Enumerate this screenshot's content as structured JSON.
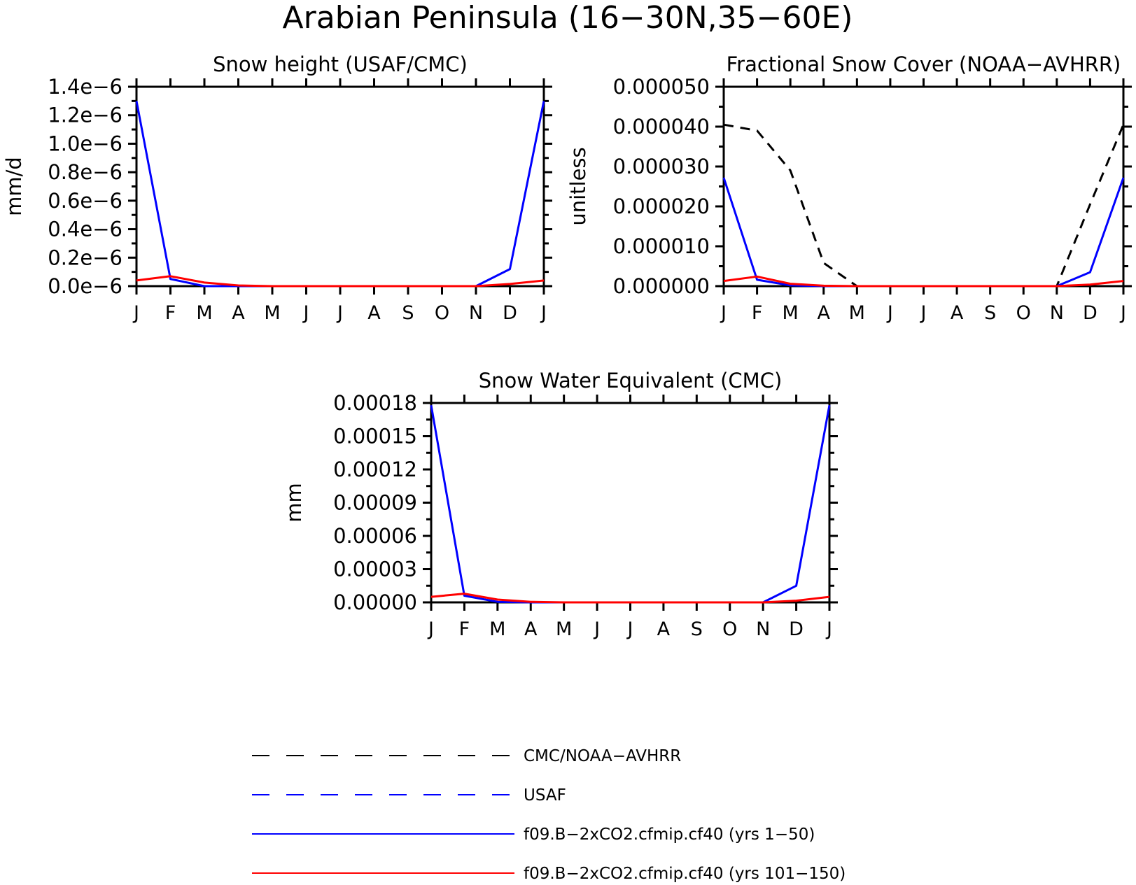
{
  "title": "Arabian Peninsula (16−30N,35−60E)",
  "colors": {
    "obs": "#000000",
    "usaf": "#0000ff",
    "run1": "#0000ff",
    "run2": "#ff0000"
  },
  "chart_data": [
    {
      "type": "line",
      "title": "Snow height (USAF/CMC)",
      "ylabel": "mm/d",
      "xlabel": "",
      "categories": [
        "J",
        "F",
        "M",
        "A",
        "M",
        "J",
        "J",
        "A",
        "S",
        "O",
        "N",
        "D",
        "J"
      ],
      "ylim": [
        0,
        1.4e-06
      ],
      "yticks": [
        0,
        2e-07,
        4e-07,
        6e-07,
        8e-07,
        1e-06,
        1.2e-06,
        1.4e-06
      ],
      "ytick_labels": [
        "0.0e−6",
        "0.2e−6",
        "0.4e−6",
        "0.6e−6",
        "0.8e−6",
        "1.0e−6",
        "1.2e−6",
        "1.4e−6"
      ],
      "grid": false,
      "series": [
        {
          "name": "f09.B−2xCO2.cfmip.cf40 (yrs 1−50)",
          "style": "solid",
          "color": "#0000ff",
          "values": [
            1.3e-06,
            5e-08,
            0.0,
            0,
            0,
            0,
            0,
            0,
            0,
            0,
            0,
            1.2e-07,
            1.3e-06
          ]
        },
        {
          "name": "f09.B−2xCO2.cfmip.cf40 (yrs 101−150)",
          "style": "solid",
          "color": "#ff0000",
          "values": [
            4e-08,
            7e-08,
            2.5e-08,
            5e-09,
            0,
            0,
            0,
            0,
            0,
            0,
            0,
            1.5e-08,
            4e-08
          ]
        }
      ]
    },
    {
      "type": "line",
      "title": "Fractional Snow Cover (NOAA−AVHRR)",
      "ylabel": "unitless",
      "xlabel": "",
      "categories": [
        "J",
        "F",
        "M",
        "A",
        "M",
        "J",
        "J",
        "A",
        "S",
        "O",
        "N",
        "D",
        "J"
      ],
      "ylim": [
        0,
        5e-05
      ],
      "yticks": [
        0,
        1e-05,
        2e-05,
        3e-05,
        4e-05,
        5e-05
      ],
      "ytick_labels": [
        "0.000000",
        "0.000010",
        "0.000020",
        "0.000030",
        "0.000040",
        "0.000050"
      ],
      "grid": false,
      "series": [
        {
          "name": "CMC/NOAA−AVHRR",
          "style": "dashed",
          "color": "#000000",
          "values": [
            4.05e-05,
            3.9e-05,
            2.9e-05,
            5.8e-06,
            0,
            0,
            0,
            0,
            0,
            0,
            0,
            2.05e-05,
            4.05e-05
          ]
        },
        {
          "name": "f09.B−2xCO2.cfmip.cf40 (yrs 1−50)",
          "style": "solid",
          "color": "#0000ff",
          "values": [
            2.72e-05,
            1.6e-06,
            2e-07,
            0,
            0,
            0,
            0,
            0,
            0,
            0,
            0,
            3.5e-06,
            2.72e-05
          ]
        },
        {
          "name": "f09.B−2xCO2.cfmip.cf40 (yrs 101−150)",
          "style": "solid",
          "color": "#ff0000",
          "values": [
            1.3e-06,
            2.4e-06,
            6e-07,
            1e-07,
            0,
            0,
            0,
            0,
            0,
            0,
            0,
            4e-07,
            1.3e-06
          ]
        }
      ]
    },
    {
      "type": "line",
      "title": "Snow Water Equivalent (CMC)",
      "ylabel": "mm",
      "xlabel": "",
      "categories": [
        "J",
        "F",
        "M",
        "A",
        "M",
        "J",
        "J",
        "A",
        "S",
        "O",
        "N",
        "D",
        "J"
      ],
      "ylim": [
        0,
        0.00018
      ],
      "yticks": [
        0,
        3e-05,
        6e-05,
        9e-05,
        0.00012,
        0.00015,
        0.00018
      ],
      "ytick_labels": [
        "0.00000",
        "0.00003",
        "0.00006",
        "0.00009",
        "0.00012",
        "0.00015",
        "0.00018"
      ],
      "grid": false,
      "series": [
        {
          "name": "f09.B−2xCO2.cfmip.cf40 (yrs 1−50)",
          "style": "solid",
          "color": "#0000ff",
          "values": [
            0.000178,
            6e-06,
            5e-07,
            0,
            0,
            0,
            0,
            0,
            0,
            0,
            0,
            1.5e-05,
            0.000178
          ]
        },
        {
          "name": "f09.B−2xCO2.cfmip.cf40 (yrs 101−150)",
          "style": "solid",
          "color": "#ff0000",
          "values": [
            5e-06,
            7.8e-06,
            2.5e-06,
            5e-07,
            0,
            0,
            0,
            0,
            0,
            0,
            0,
            1.5e-06,
            5e-06
          ]
        }
      ]
    }
  ],
  "legend": [
    {
      "label": "CMC/NOAA−AVHRR",
      "style": "dashed",
      "color": "#000000"
    },
    {
      "label": "USAF",
      "style": "dashed",
      "color": "#0000ff"
    },
    {
      "label": "f09.B−2xCO2.cfmip.cf40 (yrs 1−50)",
      "style": "solid",
      "color": "#0000ff"
    },
    {
      "label": "f09.B−2xCO2.cfmip.cf40 (yrs 101−150)",
      "style": "solid",
      "color": "#ff0000"
    }
  ]
}
